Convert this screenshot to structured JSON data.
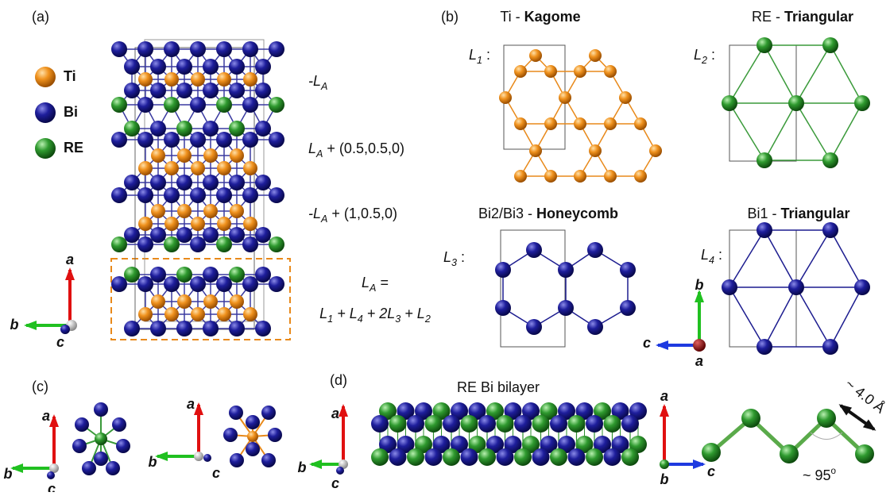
{
  "panel_a": {
    "label": "(a)",
    "legend": [
      "Ti",
      "Bi",
      "RE"
    ],
    "layers": [
      [
        "-L",
        "A"
      ],
      [
        "L",
        "A",
        " + (0.5,0.5,0)"
      ],
      [
        "-L",
        "A",
        " + (1,0.5,0)"
      ]
    ],
    "sum": [
      [
        "L",
        "A",
        " ="
      ],
      [
        "L",
        "1",
        " + L",
        "4",
        " + 2L",
        "3",
        " + L",
        "2"
      ]
    ],
    "axes": [
      "a",
      "b",
      "c"
    ]
  },
  "panel_b": {
    "label": "(b)",
    "lattices": [
      {
        "title": [
          "Ti - ",
          "Kagome"
        ],
        "layer": [
          "L",
          "1",
          " :"
        ]
      },
      {
        "title": [
          "RE - ",
          "Triangular"
        ],
        "layer": [
          "L",
          "2",
          " :"
        ]
      },
      {
        "title": [
          "Bi2/Bi3 - ",
          "Honeycomb"
        ],
        "layer": [
          "L",
          "3",
          " :"
        ]
      },
      {
        "title": [
          "Bi1 - ",
          "Triangular"
        ],
        "layer": [
          "L",
          "4",
          " :"
        ]
      }
    ],
    "axes": [
      "b",
      "c",
      "a"
    ]
  },
  "panel_c": {
    "label": "(c)",
    "axes": [
      [
        "a",
        "b",
        "c"
      ],
      [
        "a",
        "b",
        "c"
      ]
    ]
  },
  "panel_d": {
    "label": "(d)",
    "title": "RE Bi bilayer",
    "axes": [
      [
        "a",
        "b",
        "c"
      ],
      [
        "a",
        "b",
        "c"
      ]
    ],
    "distance": "~ 4.0 Å",
    "angle": [
      "~ 95",
      "o"
    ]
  }
}
